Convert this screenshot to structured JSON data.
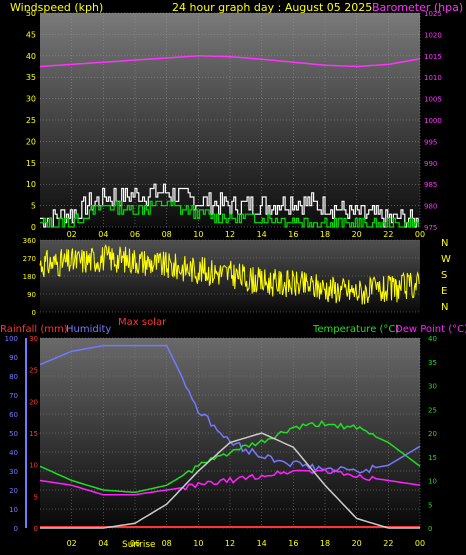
{
  "header": {
    "left": "Windspeed (kph)",
    "center": "24 hour graph day : August 05 2025",
    "right": "Barometer (hpa)"
  },
  "colors": {
    "wind_avg": "#ffffff",
    "wind_gust": "#00dd00",
    "barometer": "#ff33ff",
    "direction": "#ffff00",
    "rain": "#ff3333",
    "humidity": "#7777ff",
    "temperature": "#22dd22",
    "dewpoint": "#ff22ff",
    "solar": "#cccccc",
    "axis_text": "#ffff00"
  },
  "chart_data": [
    {
      "type": "line",
      "title": "Windspeed (kph)",
      "ylabel_left": "Windspeed (kph)",
      "ylabel_right": "Barometer (hpa)",
      "x_ticks": [
        "02",
        "04",
        "06",
        "08",
        "10",
        "12",
        "14",
        "16",
        "18",
        "20",
        "22",
        "00"
      ],
      "ylim_left": [
        0,
        50
      ],
      "yticks_left": [
        0,
        5,
        10,
        15,
        20,
        25,
        30,
        35,
        40,
        45,
        50
      ],
      "ylim_right": [
        975,
        1025
      ],
      "yticks_right": [
        975,
        980,
        985,
        990,
        995,
        1000,
        1005,
        1010,
        1015,
        1020,
        1025
      ],
      "x": [
        0,
        2,
        4,
        6,
        8,
        10,
        12,
        14,
        16,
        18,
        20,
        22,
        24
      ],
      "series": [
        {
          "name": "Barometer (hpa)",
          "axis": "right",
          "values": [
            1012.5,
            1013,
            1013.5,
            1014,
            1014.5,
            1015,
            1014.8,
            1014.2,
            1013.5,
            1012.8,
            1012.5,
            1013,
            1014.3
          ]
        },
        {
          "name": "Windspeed avg",
          "axis": "left",
          "values": [
            0.5,
            1,
            5,
            4,
            5.5,
            3,
            2,
            2,
            1.5,
            1,
            0.5,
            0.5,
            0.5
          ]
        },
        {
          "name": "Windspeed gust",
          "axis": "left",
          "values": [
            2,
            3,
            7,
            7.5,
            8,
            6,
            5,
            5,
            6,
            5,
            3,
            2,
            1.5
          ]
        }
      ]
    },
    {
      "type": "scatter",
      "title": "Wind direction",
      "ylim": [
        0,
        360
      ],
      "yticks": [
        0,
        90,
        180,
        270,
        360
      ],
      "compass": [
        "N",
        "W",
        "S",
        "E",
        "N"
      ],
      "x": [
        0,
        2,
        4,
        6,
        8,
        10,
        12,
        14,
        16,
        18,
        20,
        22,
        24
      ],
      "values": [
        240,
        250,
        270,
        260,
        230,
        210,
        190,
        150,
        140,
        120,
        100,
        110,
        140
      ]
    },
    {
      "type": "line",
      "label_rain": "Rainfall (mm)",
      "label_humidity": "Humidity",
      "label_temperature": "Temperature (°C)",
      "label_dewpoint": "Dew Point (°C)",
      "label_solar": "Max solar",
      "x_ticks": [
        "02",
        "04",
        "06",
        "08",
        "10",
        "12",
        "14",
        "16",
        "18",
        "20",
        "22",
        "00"
      ],
      "sunrise_label": "Sunrise",
      "ylim_humidity": [
        0,
        100
      ],
      "yticks_humidity": [
        0,
        10,
        20,
        30,
        40,
        50,
        60,
        70,
        80,
        90,
        100
      ],
      "ylim_rain": [
        0,
        30
      ],
      "yticks_rain": [
        0,
        5,
        10,
        15,
        20,
        25,
        30
      ],
      "ylim_temp": [
        0,
        40
      ],
      "yticks_temp": [
        0,
        5,
        10,
        15,
        20,
        25,
        30,
        35,
        40
      ],
      "x": [
        0,
        2,
        4,
        6,
        8,
        10,
        12,
        14,
        16,
        18,
        20,
        22,
        24
      ],
      "series": [
        {
          "name": "Humidity",
          "axis": "humidity",
          "values": [
            86,
            93,
            96,
            96,
            96,
            62,
            45,
            38,
            34,
            31,
            30,
            33,
            43
          ]
        },
        {
          "name": "Temperature (°C)",
          "axis": "temp",
          "values": [
            13,
            10,
            8,
            7.5,
            9,
            13,
            16,
            18,
            21,
            22,
            21,
            18,
            13
          ]
        },
        {
          "name": "Dew Point (°C)",
          "axis": "temp",
          "values": [
            10,
            9,
            7,
            7,
            8,
            9,
            10,
            11,
            12,
            12,
            11,
            10,
            9
          ]
        },
        {
          "name": "Max solar",
          "axis": "temp",
          "values": [
            0,
            0,
            0,
            1,
            5,
            12,
            18,
            20,
            17,
            9,
            2,
            0,
            0
          ]
        }
      ]
    }
  ]
}
